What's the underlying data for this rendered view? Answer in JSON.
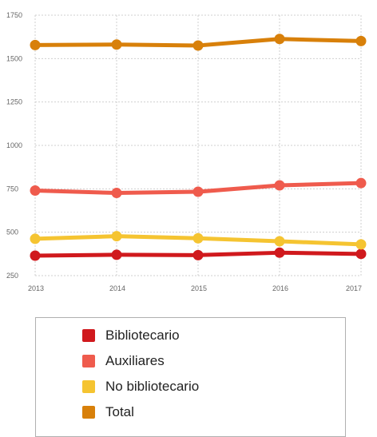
{
  "chart_data": {
    "type": "line",
    "x": [
      "2013",
      "2014",
      "2015",
      "2016",
      "2017"
    ],
    "ylim": [
      250,
      1750
    ],
    "yticks": [
      250,
      500,
      750,
      1000,
      1250,
      1500,
      1750
    ],
    "grid": true,
    "legend_position": "bottom",
    "series": [
      {
        "name": "Bibliotecario",
        "color": "#d0191d",
        "values": [
          365,
          370,
          368,
          382,
          375
        ]
      },
      {
        "name": "Auxiliares",
        "color": "#ef5b4d",
        "values": [
          740,
          726,
          733,
          770,
          783
        ]
      },
      {
        "name": "No bibliotecario",
        "color": "#f5c431",
        "values": [
          462,
          477,
          465,
          448,
          430
        ]
      },
      {
        "name": "Total",
        "color": "#d8800a",
        "values": [
          1578,
          1581,
          1575,
          1613,
          1601
        ]
      }
    ]
  },
  "legend": {
    "items": [
      {
        "label": "Bibliotecario",
        "color": "#d0191d"
      },
      {
        "label": "Auxiliares",
        "color": "#ef5b4d"
      },
      {
        "label": "No bibliotecario",
        "color": "#f5c431"
      },
      {
        "label": "Total",
        "color": "#d8800a"
      }
    ]
  }
}
